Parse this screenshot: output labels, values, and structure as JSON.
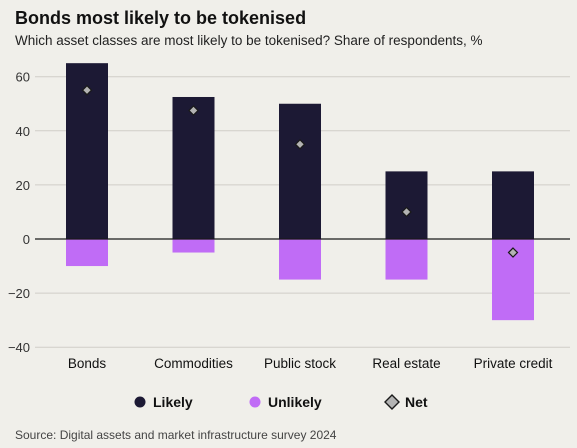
{
  "title": "Bonds most likely to be tokenised",
  "subtitle": "Which asset classes are most likely to be tokenised? Share of respondents, %",
  "source": "Source: Digital assets and market infrastructure survey 2024",
  "colors": {
    "likely": "#1c1934",
    "unlikely": "#c06cf6",
    "net_fill": "#b3b3b3",
    "net_stroke": "#1a1a1a",
    "grid": "#cfcdc8",
    "zero": "#1a1a1a"
  },
  "chart_data": {
    "type": "bar",
    "title": "Bonds most likely to be tokenised",
    "subtitle": "Which asset classes are most likely to be tokenised? Share of respondents, %",
    "categories": [
      "Bonds",
      "Commodities",
      "Public stock",
      "Real estate",
      "Private credit"
    ],
    "series": [
      {
        "name": "Likely",
        "values": [
          65,
          52.5,
          50,
          25,
          25
        ],
        "kind": "bar"
      },
      {
        "name": "Unlikely",
        "values": [
          -10,
          -5,
          -15,
          -15,
          -30
        ],
        "kind": "bar"
      },
      {
        "name": "Net",
        "values": [
          55,
          47.5,
          35,
          10,
          -5
        ],
        "kind": "marker"
      }
    ],
    "yticks": [
      60,
      40,
      20,
      0,
      -20,
      -40
    ],
    "ytick_labels": [
      "60",
      "40",
      "20",
      "0",
      "−20",
      "−40"
    ],
    "ylim": [
      -40,
      65
    ],
    "grid": true,
    "legend_position": "bottom"
  }
}
